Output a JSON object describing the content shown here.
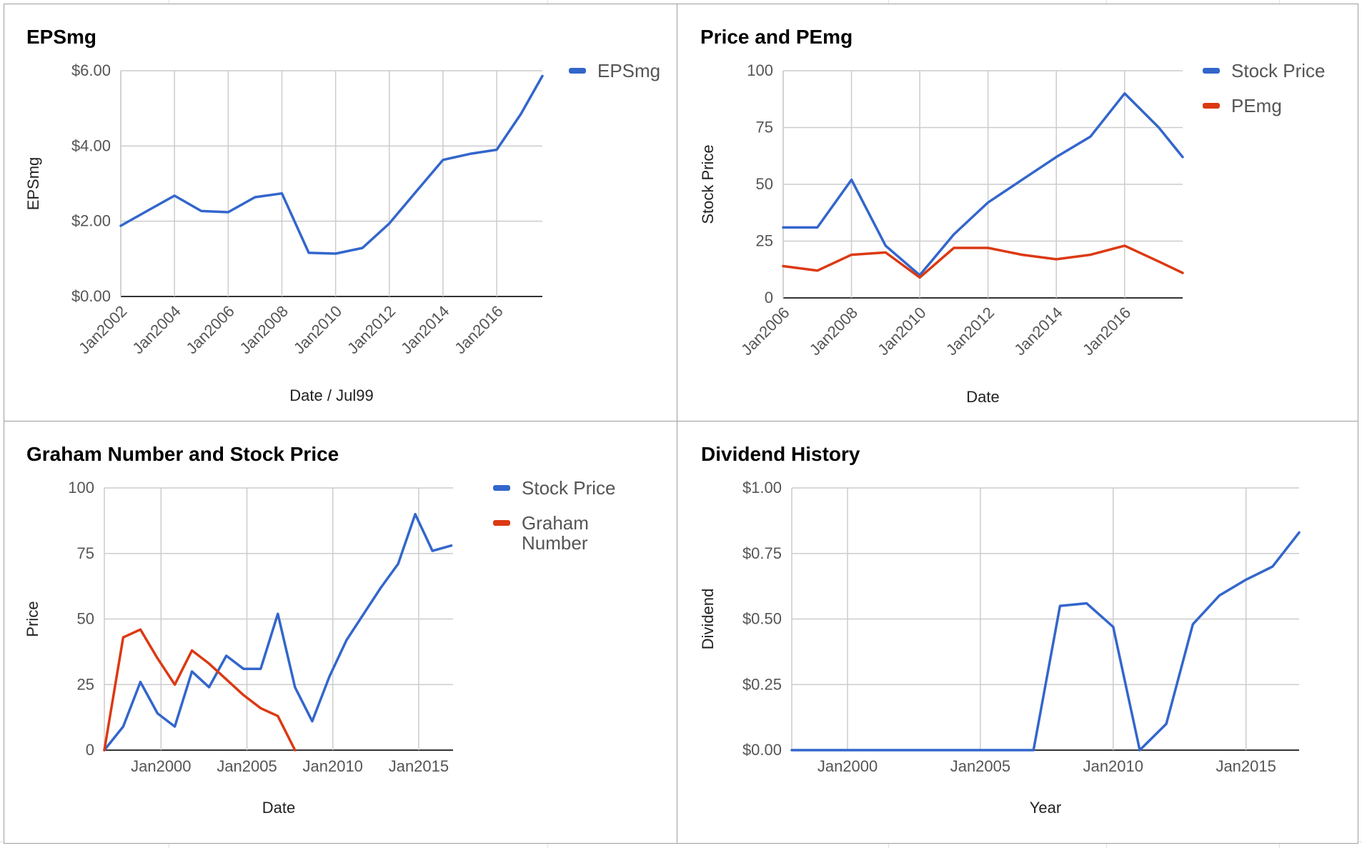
{
  "chart_data": [
    {
      "type": "line",
      "title": "EPSmg",
      "xlabel": "Date / Jul99",
      "ylabel": "EPSmg",
      "x_tick_labels": [
        "Jan2002",
        "Jan2004",
        "Jan2006",
        "Jan2008",
        "Jan2010",
        "Jan2012",
        "Jan2014",
        "Jan2016"
      ],
      "y_tick_labels": [
        "$0.00",
        "$2.00",
        "$4.00",
        "$6.00"
      ],
      "xlim": [
        2002.0,
        2017.7
      ],
      "ylim": [
        0,
        6
      ],
      "grid": true,
      "legend": "right",
      "series": [
        {
          "name": "EPSmg",
          "color": "#3366cc",
          "x": [
            2002.0,
            2003,
            2004,
            2005,
            2006,
            2007,
            2008,
            2009,
            2010,
            2011,
            2012,
            2013,
            2014,
            2015,
            2016,
            2016.9,
            2017.7
          ],
          "y": [
            1.88,
            2.28,
            2.68,
            2.27,
            2.24,
            2.64,
            2.74,
            1.16,
            1.14,
            1.29,
            1.94,
            2.79,
            3.63,
            3.79,
            3.9,
            4.85,
            5.86
          ]
        }
      ]
    },
    {
      "type": "line",
      "title": "Price and PEmg",
      "xlabel": "Date",
      "ylabel": "Stock Price",
      "x_tick_labels": [
        "Jan2006",
        "Jan2008",
        "Jan2010",
        "Jan2012",
        "Jan2014",
        "Jan2016"
      ],
      "y_tick_labels": [
        "0",
        "25",
        "50",
        "75",
        "100"
      ],
      "xlim": [
        2006.0,
        2017.7
      ],
      "ylim": [
        0,
        100
      ],
      "grid": true,
      "legend": "right",
      "series": [
        {
          "name": "Stock Price",
          "color": "#3366cc",
          "x": [
            2006,
            2007,
            2008,
            2009,
            2010,
            2011,
            2012,
            2013,
            2014,
            2015,
            2016,
            2017,
            2017.7
          ],
          "y": [
            31,
            31,
            52,
            23,
            10,
            28,
            42,
            52,
            62,
            71,
            90,
            75,
            62
          ]
        },
        {
          "name": "PEmg",
          "color": "#dc3912",
          "x": [
            2006,
            2007,
            2008,
            2009,
            2010,
            2011,
            2012,
            2013,
            2014,
            2015,
            2016,
            2017,
            2017.7
          ],
          "y": [
            14,
            12,
            19,
            20,
            9,
            22,
            22,
            19,
            17,
            19,
            23,
            16,
            11
          ]
        }
      ]
    },
    {
      "type": "line",
      "title": "Graham Number and Stock Price",
      "xlabel": "Date",
      "ylabel": "Price",
      "x_tick_labels": [
        "Jan2000",
        "Jan2005",
        "Jan2010",
        "Jan2015"
      ],
      "y_tick_labels": [
        "0",
        "25",
        "50",
        "75",
        "100"
      ],
      "xlim": [
        1996.7,
        2017.0
      ],
      "ylim": [
        0,
        100
      ],
      "grid": true,
      "legend": "right",
      "series": [
        {
          "name": "Stock Price",
          "color": "#3366cc",
          "x": [
            1996.7,
            1997.8,
            1998.8,
            1999.8,
            2000.8,
            2001.8,
            2002.8,
            2003.8,
            2004.8,
            2005.8,
            2006.8,
            2007.8,
            2008.8,
            2009.8,
            2010.8,
            2011.8,
            2012.8,
            2013.8,
            2014.8,
            2015.8,
            2016.9
          ],
          "y": [
            0,
            9,
            26,
            14,
            9,
            30,
            24,
            36,
            31,
            31,
            52,
            24,
            11,
            28,
            42,
            52,
            62,
            71,
            90,
            76,
            78
          ]
        },
        {
          "name": "Graham Number",
          "color": "#dc3912",
          "x": [
            1996.7,
            1997.8,
            1998.8,
            1999.8,
            2000.8,
            2001.8,
            2002.8,
            2003.8,
            2004.8,
            2005.8,
            2006.8,
            2007.8
          ],
          "y": [
            0,
            43,
            46,
            35,
            25,
            38,
            33,
            27,
            21,
            16,
            13,
            0
          ]
        }
      ]
    },
    {
      "type": "line",
      "title": "Dividend History",
      "xlabel": "Year",
      "ylabel": "Dividend",
      "x_tick_labels": [
        "Jan2000",
        "Jan2005",
        "Jan2010",
        "Jan2015"
      ],
      "y_tick_labels": [
        "$0.00",
        "$0.25",
        "$0.50",
        "$0.75",
        "$1.00"
      ],
      "xlim": [
        1997.9,
        2017.0
      ],
      "ylim": [
        0,
        1
      ],
      "grid": true,
      "series": [
        {
          "name": "",
          "color": "#3366cc",
          "x": [
            1997.9,
            1999,
            2000,
            2001,
            2002,
            2003,
            2004,
            2005,
            2006,
            2007.0,
            2008.0,
            2009.0,
            2010.0,
            2011.0,
            2012.0,
            2013.0,
            2014.0,
            2015.0,
            2016.0,
            2017.0
          ],
          "y": [
            0,
            0,
            0,
            0,
            0,
            0,
            0,
            0,
            0,
            0,
            0.55,
            0.56,
            0.47,
            0,
            0.1,
            0.48,
            0.59,
            0.65,
            0.7,
            0.83
          ]
        }
      ]
    }
  ]
}
